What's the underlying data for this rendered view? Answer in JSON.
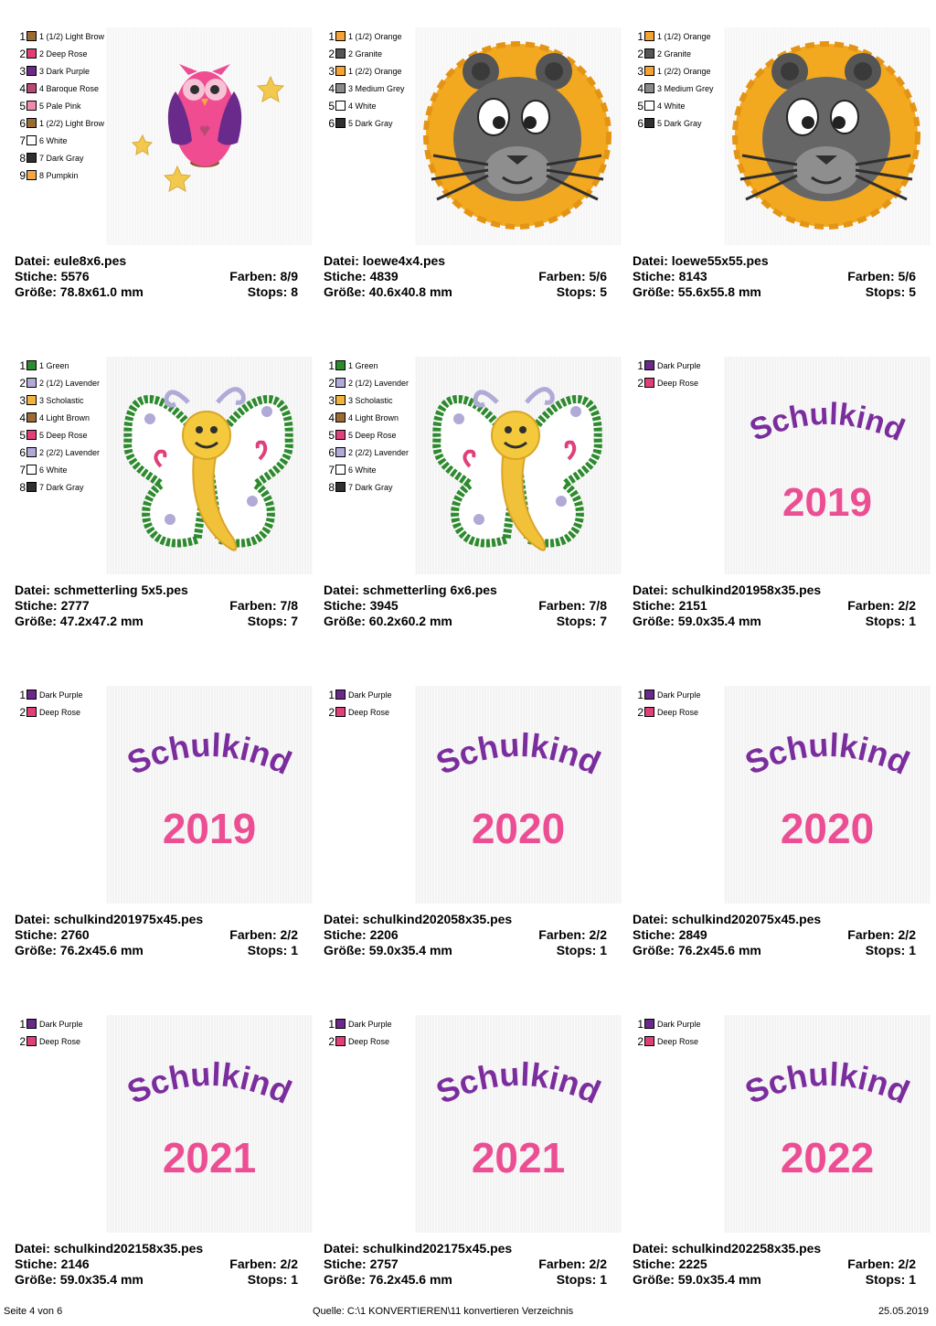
{
  "cells": [
    {
      "file": "Datei: eule8x6.pes",
      "stitches": "Stiche: 5576",
      "colors": "Farben: 8/9",
      "size": "Größe: 78.8x61.0 mm",
      "stops": "Stops: 8",
      "legend": [
        {
          "n": "1",
          "name": "1 (1/2) Light Brow",
          "color": "#9c6b34"
        },
        {
          "n": "2",
          "name": "2 Deep Rose",
          "color": "#e0407a"
        },
        {
          "n": "3",
          "name": "3 Dark Purple",
          "color": "#6a2a8c"
        },
        {
          "n": "4",
          "name": "4 Baroque Rose",
          "color": "#b84a78"
        },
        {
          "n": "5",
          "name": "5 Pale Pink",
          "color": "#f28ab0"
        },
        {
          "n": "6",
          "name": "1 (2/2) Light Brow",
          "color": "#9c6b34"
        },
        {
          "n": "7",
          "name": "6 White",
          "color": "#ffffff"
        },
        {
          "n": "8",
          "name": "7 Dark Gray",
          "color": "#2f2f2f"
        },
        {
          "n": "9",
          "name": "8 Pumpkin",
          "color": "#f6a646"
        }
      ]
    },
    {
      "file": "Datei: loewe4x4.pes",
      "stitches": "Stiche: 4839",
      "colors": "Farben: 5/6",
      "size": "Größe: 40.6x40.8 mm",
      "stops": "Stops: 5",
      "legend": [
        {
          "n": "1",
          "name": "1 (1/2) Orange",
          "color": "#f5a332"
        },
        {
          "n": "2",
          "name": "2 Granite",
          "color": "#555555"
        },
        {
          "n": "3",
          "name": "1 (2/2) Orange",
          "color": "#f5a332"
        },
        {
          "n": "4",
          "name": "3 Medium Grey",
          "color": "#8a8a8a"
        },
        {
          "n": "5",
          "name": "4 White",
          "color": "#ffffff"
        },
        {
          "n": "6",
          "name": "5 Dark Gray",
          "color": "#2f2f2f"
        }
      ]
    },
    {
      "file": "Datei: loewe55x55.pes",
      "stitches": "Stiche: 8143",
      "colors": "Farben: 5/6",
      "size": "Größe: 55.6x55.8 mm",
      "stops": "Stops: 5",
      "legend": [
        {
          "n": "1",
          "name": "1 (1/2) Orange",
          "color": "#f5a332"
        },
        {
          "n": "2",
          "name": "2 Granite",
          "color": "#555555"
        },
        {
          "n": "3",
          "name": "1 (2/2) Orange",
          "color": "#f5a332"
        },
        {
          "n": "4",
          "name": "3 Medium Grey",
          "color": "#8a8a8a"
        },
        {
          "n": "5",
          "name": "4 White",
          "color": "#ffffff"
        },
        {
          "n": "6",
          "name": "5 Dark Gray",
          "color": "#2f2f2f"
        }
      ]
    },
    {
      "file": "Datei: schmetterling 5x5.pes",
      "stitches": "Stiche: 2777",
      "colors": "Farben: 7/8",
      "size": "Größe: 47.2x47.2 mm",
      "stops": "Stops: 7",
      "legend": [
        {
          "n": "1",
          "name": "1 Green",
          "color": "#2e8a2e"
        },
        {
          "n": "2",
          "name": "2 (1/2) Lavender",
          "color": "#b0aad6"
        },
        {
          "n": "3",
          "name": "3 Scholastic",
          "color": "#f2b33a"
        },
        {
          "n": "4",
          "name": "4 Light Brown",
          "color": "#9c6b34"
        },
        {
          "n": "5",
          "name": "5 Deep Rose",
          "color": "#e0407a"
        },
        {
          "n": "6",
          "name": "2 (2/2) Lavender",
          "color": "#b0aad6"
        },
        {
          "n": "7",
          "name": "6 White",
          "color": "#ffffff"
        },
        {
          "n": "8",
          "name": "7 Dark Gray",
          "color": "#2f2f2f"
        }
      ]
    },
    {
      "file": "Datei: schmetterling 6x6.pes",
      "stitches": "Stiche: 3945",
      "colors": "Farben: 7/8",
      "size": "Größe: 60.2x60.2 mm",
      "stops": "Stops: 7",
      "legend": [
        {
          "n": "1",
          "name": "1 Green",
          "color": "#2e8a2e"
        },
        {
          "n": "2",
          "name": "2 (1/2) Lavender",
          "color": "#b0aad6"
        },
        {
          "n": "3",
          "name": "3 Scholastic",
          "color": "#f2b33a"
        },
        {
          "n": "4",
          "name": "4 Light Brown",
          "color": "#9c6b34"
        },
        {
          "n": "5",
          "name": "5 Deep Rose",
          "color": "#e0407a"
        },
        {
          "n": "6",
          "name": "2 (2/2) Lavender",
          "color": "#b0aad6"
        },
        {
          "n": "7",
          "name": "6 White",
          "color": "#ffffff"
        },
        {
          "n": "8",
          "name": "7 Dark Gray",
          "color": "#2f2f2f"
        }
      ]
    },
    {
      "file": "Datei: schulkind201958x35.pes",
      "stitches": "Stiche: 2151",
      "colors": "Farben: 2/2",
      "size": "Größe: 59.0x35.4 mm",
      "stops": "Stops: 1",
      "word": "Schulkind",
      "year": "2019",
      "legend": [
        {
          "n": "1",
          "name": "Dark Purple",
          "color": "#6a2a8c"
        },
        {
          "n": "2",
          "name": "Deep Rose",
          "color": "#e0407a"
        }
      ]
    },
    {
      "file": "Datei: schulkind201975x45.pes",
      "stitches": "Stiche: 2760",
      "colors": "Farben: 2/2",
      "size": "Größe: 76.2x45.6 mm",
      "stops": "Stops: 1",
      "word": "Schulkind",
      "year": "2019",
      "legend": [
        {
          "n": "1",
          "name": "Dark Purple",
          "color": "#6a2a8c"
        },
        {
          "n": "2",
          "name": "Deep Rose",
          "color": "#e0407a"
        }
      ]
    },
    {
      "file": "Datei: schulkind202058x35.pes",
      "stitches": "Stiche: 2206",
      "colors": "Farben: 2/2",
      "size": "Größe: 59.0x35.4 mm",
      "stops": "Stops: 1",
      "word": "Schulkind",
      "year": "2020",
      "legend": [
        {
          "n": "1",
          "name": "Dark Purple",
          "color": "#6a2a8c"
        },
        {
          "n": "2",
          "name": "Deep Rose",
          "color": "#e0407a"
        }
      ]
    },
    {
      "file": "Datei: schulkind202075x45.pes",
      "stitches": "Stiche: 2849",
      "colors": "Farben: 2/2",
      "size": "Größe: 76.2x45.6 mm",
      "stops": "Stops: 1",
      "word": "Schulkind",
      "year": "2020",
      "legend": [
        {
          "n": "1",
          "name": "Dark Purple",
          "color": "#6a2a8c"
        },
        {
          "n": "2",
          "name": "Deep Rose",
          "color": "#e0407a"
        }
      ]
    },
    {
      "file": "Datei: schulkind202158x35.pes",
      "stitches": "Stiche: 2146",
      "colors": "Farben: 2/2",
      "size": "Größe: 59.0x35.4 mm",
      "stops": "Stops: 1",
      "word": "Schulkind",
      "year": "2021",
      "legend": [
        {
          "n": "1",
          "name": "Dark Purple",
          "color": "#6a2a8c"
        },
        {
          "n": "2",
          "name": "Deep Rose",
          "color": "#e0407a"
        }
      ]
    },
    {
      "file": "Datei: schulkind202175x45.pes",
      "stitches": "Stiche: 2757",
      "colors": "Farben: 2/2",
      "size": "Größe: 76.2x45.6 mm",
      "stops": "Stops: 1",
      "word": "Schulkind",
      "year": "2021",
      "legend": [
        {
          "n": "1",
          "name": "Dark Purple",
          "color": "#6a2a8c"
        },
        {
          "n": "2",
          "name": "Deep Rose",
          "color": "#e0407a"
        }
      ]
    },
    {
      "file": "Datei: schulkind202258x35.pes",
      "stitches": "Stiche: 2225",
      "colors": "Farben: 2/2",
      "size": "Größe: 59.0x35.4 mm",
      "stops": "Stops: 1",
      "word": "Schulkind",
      "year": "2022",
      "legend": [
        {
          "n": "1",
          "name": "Dark Purple",
          "color": "#6a2a8c"
        },
        {
          "n": "2",
          "name": "Deep Rose",
          "color": "#e0407a"
        }
      ]
    }
  ],
  "footer": {
    "page": "Seite 4 von 6",
    "source": "Quelle: C:\\1 KONVERTIEREN\\11 konvertieren Verzeichnis",
    "date": "25.05.2019"
  }
}
